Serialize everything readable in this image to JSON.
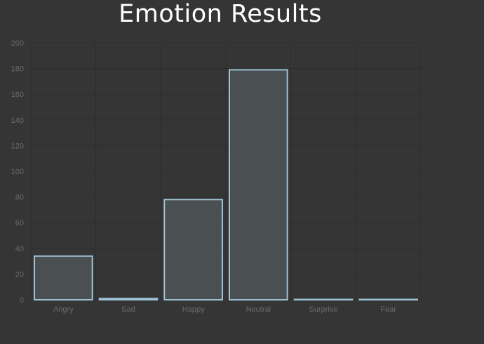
{
  "chart_data": {
    "type": "bar",
    "title": "Emotion Results",
    "categories": [
      "Angry",
      "Sad",
      "Happy",
      "Neutral",
      "Surprise",
      "Fear"
    ],
    "values": [
      34,
      1,
      78,
      179,
      0,
      0
    ],
    "ylim": [
      0,
      200
    ],
    "yticks": [
      "0",
      "20",
      "40",
      "60",
      "80",
      "100",
      "120",
      "140",
      "160",
      "180",
      "200"
    ],
    "grid": true,
    "legend": "none",
    "colors": {
      "background": "#353535",
      "bar_fill": "#4a4f52",
      "bar_stroke": "#9ec3d6",
      "grid": "#2e2e2e",
      "tick_text": "#6b6b6b",
      "title_text": "#ffffff"
    }
  }
}
